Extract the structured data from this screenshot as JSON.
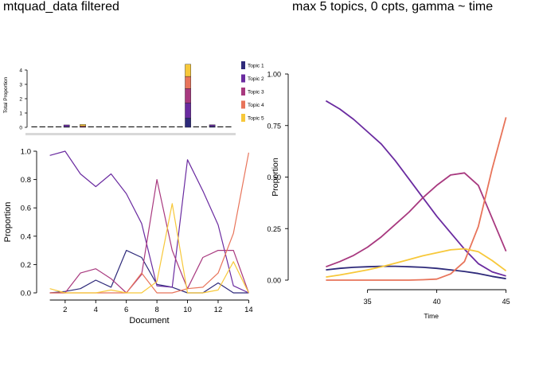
{
  "titles": {
    "left": "mtquad_data filtered",
    "right": "max 5 topics, 0 cpts, gamma ~ time"
  },
  "colors": {
    "topic_1": "#2e2a7a",
    "topic_2": "#6a2ba0",
    "topic_3": "#a8397f",
    "topic_4": "#e8745a",
    "topic_5": "#f7c83a"
  },
  "chart_data": [
    {
      "type": "bar",
      "stacked": true,
      "ylabel": "Total Proportion",
      "ylim": [
        0,
        4.5
      ],
      "yticks": [
        0,
        1,
        2,
        3,
        4
      ],
      "legend_position": "right",
      "series_names": [
        "Topic 1",
        "Topic 2",
        "Topic 3",
        "Topic 4",
        "Topic 5"
      ],
      "n_categories": 25,
      "stacks": [
        {
          "index": 4,
          "values": [
            0.05,
            0.12,
            0.0,
            0.0,
            0.0
          ]
        },
        {
          "index": 6,
          "values": [
            0.0,
            0.0,
            0.05,
            0.05,
            0.1
          ]
        },
        {
          "index": 19,
          "values": [
            0.65,
            1.05,
            1.0,
            0.85,
            0.85
          ]
        },
        {
          "index": 22,
          "values": [
            0.08,
            0.1,
            0.0,
            0.0,
            0.0
          ]
        }
      ]
    },
    {
      "type": "line",
      "xlabel": "Document",
      "ylabel": "Proportion",
      "xlim": [
        0.5,
        14.5
      ],
      "ylim": [
        0,
        1.0
      ],
      "xticks": [
        2,
        4,
        6,
        8,
        10,
        12,
        14
      ],
      "yticks": [
        "0.0",
        "0.2",
        "0.4",
        "0.6",
        "0.8",
        "1.0"
      ],
      "x": [
        1,
        2,
        3,
        4,
        5,
        6,
        7,
        8,
        9,
        10,
        11,
        12,
        13,
        14
      ],
      "series": [
        {
          "name": "Topic 1",
          "values": [
            0.0,
            0.01,
            0.03,
            0.09,
            0.04,
            0.3,
            0.25,
            0.06,
            0.04,
            0.0,
            0.0,
            0.07,
            0.0,
            0.0
          ]
        },
        {
          "name": "Topic 2",
          "values": [
            0.97,
            1.0,
            0.84,
            0.75,
            0.84,
            0.7,
            0.49,
            0.05,
            0.04,
            0.94,
            0.72,
            0.48,
            0.05,
            0.0
          ]
        },
        {
          "name": "Topic 3",
          "values": [
            0.0,
            0.0,
            0.14,
            0.17,
            0.1,
            0.0,
            0.13,
            0.8,
            0.3,
            0.03,
            0.25,
            0.3,
            0.3,
            0.0
          ]
        },
        {
          "name": "Topic 4",
          "values": [
            0.0,
            0.0,
            0.0,
            0.0,
            0.0,
            0.0,
            0.14,
            0.0,
            0.0,
            0.03,
            0.04,
            0.14,
            0.42,
            0.99
          ]
        },
        {
          "name": "Topic 5",
          "values": [
            0.03,
            0.0,
            0.0,
            0.0,
            0.02,
            0.0,
            0.0,
            0.08,
            0.63,
            0.0,
            0.0,
            0.02,
            0.22,
            0.0
          ]
        }
      ]
    },
    {
      "type": "line",
      "xlabel": "Time",
      "ylabel": "Proportion",
      "xlim": [
        31,
        46
      ],
      "ylim": [
        -0.03,
        1.03
      ],
      "xticks": [
        35,
        40,
        45
      ],
      "yticks": [
        "0.00",
        "0.25",
        "0.50",
        "0.75",
        "1.00"
      ],
      "grid": false,
      "x": [
        32,
        33,
        34,
        35,
        36,
        37,
        38,
        39,
        40,
        41,
        42,
        43,
        44,
        45
      ],
      "series": [
        {
          "name": "Topic 1",
          "values": [
            0.05,
            0.057,
            0.062,
            0.065,
            0.067,
            0.067,
            0.065,
            0.062,
            0.057,
            0.05,
            0.042,
            0.032,
            0.018,
            0.007
          ]
        },
        {
          "name": "Topic 2",
          "values": [
            0.87,
            0.83,
            0.78,
            0.72,
            0.66,
            0.58,
            0.49,
            0.4,
            0.31,
            0.23,
            0.15,
            0.08,
            0.04,
            0.02
          ]
        },
        {
          "name": "Topic 3",
          "values": [
            0.065,
            0.09,
            0.12,
            0.16,
            0.21,
            0.27,
            0.33,
            0.4,
            0.46,
            0.51,
            0.52,
            0.46,
            0.3,
            0.14
          ]
        },
        {
          "name": "Topic 4",
          "values": [
            0.0,
            0.0,
            0.0,
            0.0,
            0.0,
            0.0,
            0.0,
            0.002,
            0.005,
            0.03,
            0.09,
            0.26,
            0.54,
            0.79
          ]
        },
        {
          "name": "Topic 5",
          "values": [
            0.015,
            0.025,
            0.037,
            0.05,
            0.065,
            0.082,
            0.1,
            0.118,
            0.133,
            0.147,
            0.152,
            0.138,
            0.095,
            0.045
          ]
        }
      ]
    }
  ]
}
